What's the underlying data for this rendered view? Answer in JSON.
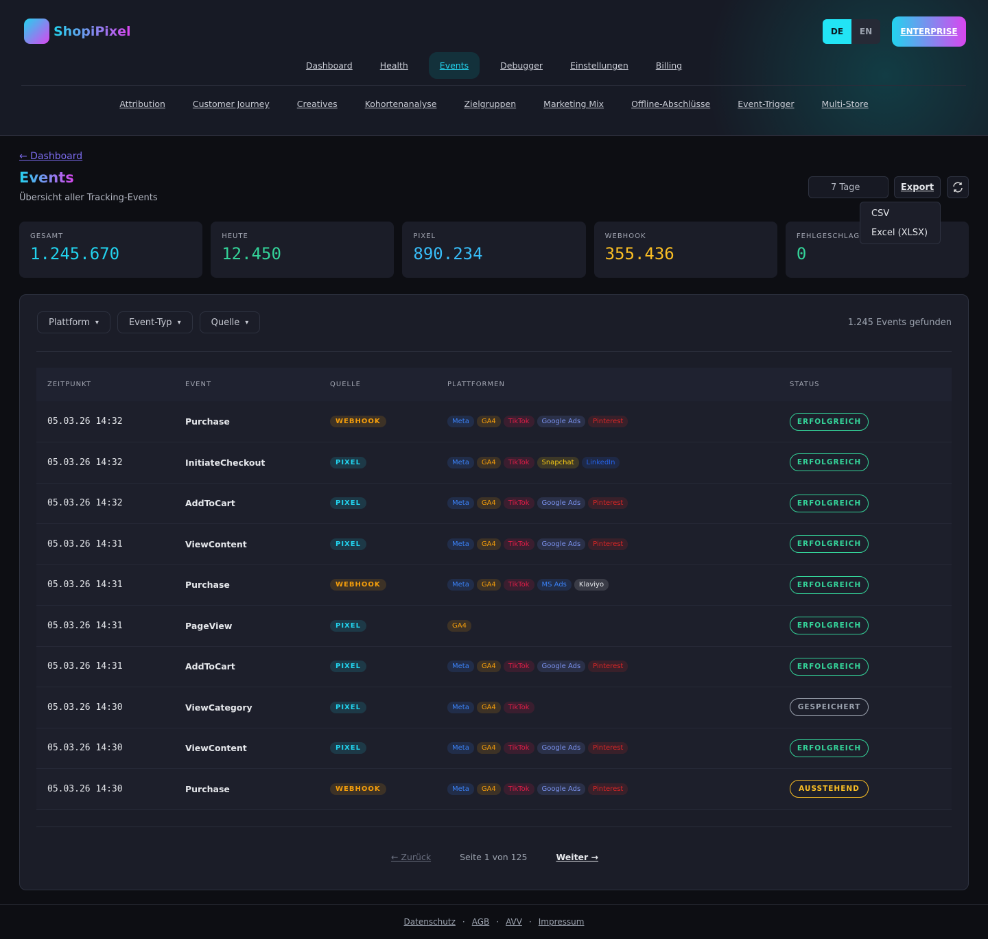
{
  "brand": "ShopiPixel",
  "languages": [
    {
      "label": "DE",
      "active": true
    },
    {
      "label": "EN",
      "active": false
    }
  ],
  "plan": "ENTERPRISE",
  "nav": {
    "primary": [
      {
        "label": "Dashboard",
        "active": false
      },
      {
        "label": "Health",
        "active": false
      },
      {
        "label": "Events",
        "active": true
      },
      {
        "label": "Debugger",
        "active": false
      },
      {
        "label": "Einstellungen",
        "active": false
      },
      {
        "label": "Billing",
        "active": false
      }
    ],
    "secondary": [
      "Attribution",
      "Customer Journey",
      "Creatives",
      "Kohortenanalyse",
      "Zielgruppen",
      "Marketing Mix",
      "Offline-Abschlüsse",
      "Event-Trigger",
      "Multi-Store"
    ]
  },
  "header": {
    "back": "← Dashboard",
    "title": "Events",
    "subtitle": "Übersicht aller Tracking-Events",
    "range": "7 Tage",
    "export": "Export",
    "export_menu": [
      "CSV",
      "Excel (XLSX)"
    ]
  },
  "stats": [
    {
      "label": "GESAMT",
      "value": "1.245.670",
      "color": "#22d3ee"
    },
    {
      "label": "HEUTE",
      "value": "12.450",
      "color": "#34d399"
    },
    {
      "label": "PIXEL",
      "value": "890.234",
      "color": "#38bdf8"
    },
    {
      "label": "WEBHOOK",
      "value": "355.436",
      "color": "#fbbf24"
    },
    {
      "label": "FEHLGESCHLAGE",
      "value": "0",
      "color": "#34d399"
    }
  ],
  "filters": [
    "Plattform",
    "Event-Typ",
    "Quelle"
  ],
  "result_count": "1.245 Events gefunden",
  "table": {
    "columns": [
      "ZEITPUNKT",
      "EVENT",
      "QUELLE",
      "PLATTFORMEN",
      "STATUS"
    ],
    "rows": [
      {
        "time": "05.03.26 14:32",
        "event": "Purchase",
        "source": {
          "label": "WEBHOOK",
          "color": "#f59e0b"
        },
        "platforms": [
          {
            "label": "Meta",
            "color": "#3b82f6"
          },
          {
            "label": "GA4",
            "color": "#f59e0b"
          },
          {
            "label": "TikTok",
            "color": "#e11d48"
          },
          {
            "label": "Google Ads",
            "color": "#7c93f0"
          },
          {
            "label": "Pinterest",
            "color": "#dc2626"
          }
        ],
        "status": {
          "label": "ERFOLGREICH",
          "color": "#34d399"
        }
      },
      {
        "time": "05.03.26 14:32",
        "event": "InitiateCheckout",
        "source": {
          "label": "PIXEL",
          "color": "#22d3ee"
        },
        "platforms": [
          {
            "label": "Meta",
            "color": "#3b82f6"
          },
          {
            "label": "GA4",
            "color": "#f59e0b"
          },
          {
            "label": "TikTok",
            "color": "#e11d48"
          },
          {
            "label": "Snapchat",
            "color": "#facc15"
          },
          {
            "label": "LinkedIn",
            "color": "#2563eb"
          }
        ],
        "status": {
          "label": "ERFOLGREICH",
          "color": "#34d399"
        }
      },
      {
        "time": "05.03.26 14:32",
        "event": "AddToCart",
        "source": {
          "label": "PIXEL",
          "color": "#22d3ee"
        },
        "platforms": [
          {
            "label": "Meta",
            "color": "#3b82f6"
          },
          {
            "label": "GA4",
            "color": "#f59e0b"
          },
          {
            "label": "TikTok",
            "color": "#e11d48"
          },
          {
            "label": "Google Ads",
            "color": "#7c93f0"
          },
          {
            "label": "Pinterest",
            "color": "#dc2626"
          }
        ],
        "status": {
          "label": "ERFOLGREICH",
          "color": "#34d399"
        }
      },
      {
        "time": "05.03.26 14:31",
        "event": "ViewContent",
        "source": {
          "label": "PIXEL",
          "color": "#22d3ee"
        },
        "platforms": [
          {
            "label": "Meta",
            "color": "#3b82f6"
          },
          {
            "label": "GA4",
            "color": "#f59e0b"
          },
          {
            "label": "TikTok",
            "color": "#e11d48"
          },
          {
            "label": "Google Ads",
            "color": "#7c93f0"
          },
          {
            "label": "Pinterest",
            "color": "#dc2626"
          }
        ],
        "status": {
          "label": "ERFOLGREICH",
          "color": "#34d399"
        }
      },
      {
        "time": "05.03.26 14:31",
        "event": "Purchase",
        "source": {
          "label": "WEBHOOK",
          "color": "#f59e0b"
        },
        "platforms": [
          {
            "label": "Meta",
            "color": "#3b82f6"
          },
          {
            "label": "GA4",
            "color": "#f59e0b"
          },
          {
            "label": "TikTok",
            "color": "#e11d48"
          },
          {
            "label": "MS Ads",
            "color": "#3b82f6"
          },
          {
            "label": "Klaviyo",
            "color": "#e5e7eb"
          }
        ],
        "status": {
          "label": "ERFOLGREICH",
          "color": "#34d399"
        }
      },
      {
        "time": "05.03.26 14:31",
        "event": "PageView",
        "source": {
          "label": "PIXEL",
          "color": "#22d3ee"
        },
        "platforms": [
          {
            "label": "GA4",
            "color": "#f59e0b"
          }
        ],
        "status": {
          "label": "ERFOLGREICH",
          "color": "#34d399"
        }
      },
      {
        "time": "05.03.26 14:31",
        "event": "AddToCart",
        "source": {
          "label": "PIXEL",
          "color": "#22d3ee"
        },
        "platforms": [
          {
            "label": "Meta",
            "color": "#3b82f6"
          },
          {
            "label": "GA4",
            "color": "#f59e0b"
          },
          {
            "label": "TikTok",
            "color": "#e11d48"
          },
          {
            "label": "Google Ads",
            "color": "#7c93f0"
          },
          {
            "label": "Pinterest",
            "color": "#dc2626"
          }
        ],
        "status": {
          "label": "ERFOLGREICH",
          "color": "#34d399"
        }
      },
      {
        "time": "05.03.26 14:30",
        "event": "ViewCategory",
        "source": {
          "label": "PIXEL",
          "color": "#22d3ee"
        },
        "platforms": [
          {
            "label": "Meta",
            "color": "#3b82f6"
          },
          {
            "label": "GA4",
            "color": "#f59e0b"
          },
          {
            "label": "TikTok",
            "color": "#e11d48"
          }
        ],
        "status": {
          "label": "GESPEICHERT",
          "color": "#9ca3af"
        }
      },
      {
        "time": "05.03.26 14:30",
        "event": "ViewContent",
        "source": {
          "label": "PIXEL",
          "color": "#22d3ee"
        },
        "platforms": [
          {
            "label": "Meta",
            "color": "#3b82f6"
          },
          {
            "label": "GA4",
            "color": "#f59e0b"
          },
          {
            "label": "TikTok",
            "color": "#e11d48"
          },
          {
            "label": "Google Ads",
            "color": "#7c93f0"
          },
          {
            "label": "Pinterest",
            "color": "#dc2626"
          }
        ],
        "status": {
          "label": "ERFOLGREICH",
          "color": "#34d399"
        }
      },
      {
        "time": "05.03.26 14:30",
        "event": "Purchase",
        "source": {
          "label": "WEBHOOK",
          "color": "#f59e0b"
        },
        "platforms": [
          {
            "label": "Meta",
            "color": "#3b82f6"
          },
          {
            "label": "GA4",
            "color": "#f59e0b"
          },
          {
            "label": "TikTok",
            "color": "#e11d48"
          },
          {
            "label": "Google Ads",
            "color": "#7c93f0"
          },
          {
            "label": "Pinterest",
            "color": "#dc2626"
          }
        ],
        "status": {
          "label": "AUSSTEHEND",
          "color": "#fbbf24"
        }
      }
    ]
  },
  "pagination": {
    "prev": "← Zurück",
    "info": "Seite 1 von 125",
    "next": "Weiter →"
  },
  "footer": [
    "Datenschutz",
    "AGB",
    "AVV",
    "Impressum"
  ]
}
